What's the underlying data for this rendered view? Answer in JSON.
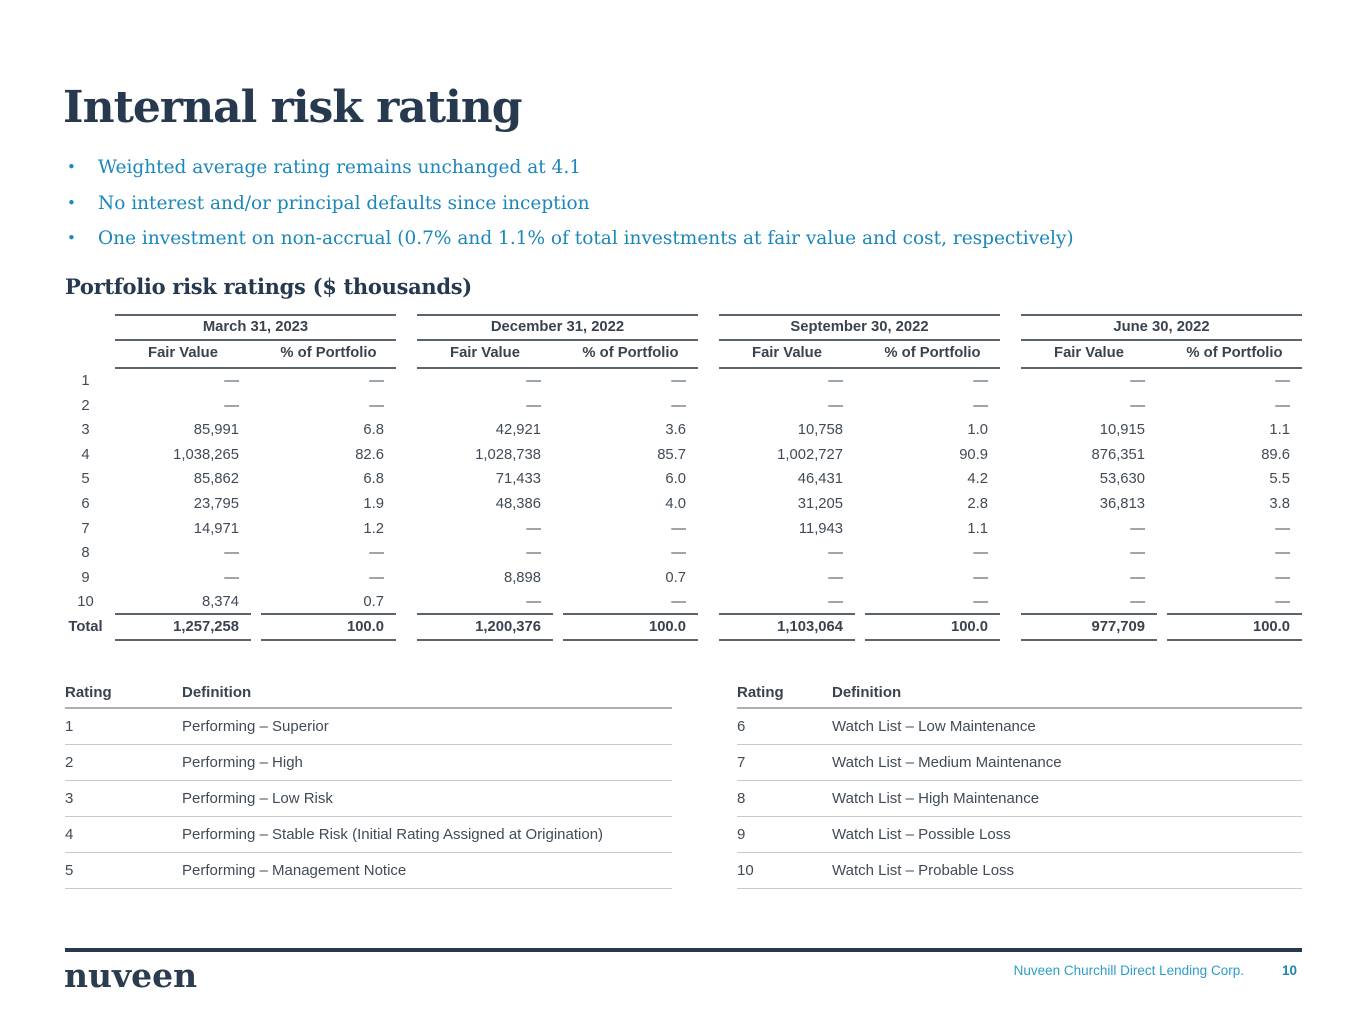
{
  "page": {
    "title": "Internal risk rating",
    "bullets": [
      "Weighted average rating remains unchanged at 4.1",
      "No interest and/or principal defaults since inception",
      "One investment on non-accrual (0.7% and 1.1% of total investments at fair value and cost, respectively)"
    ],
    "section_heading": "Portfolio risk ratings ($ thousands)"
  },
  "risk_table": {
    "column_groups": [
      "March 31, 2023",
      "December 31, 2022",
      "September 30, 2022",
      "June 30, 2022"
    ],
    "sub_headers": [
      "Fair Value",
      "% of Portfolio"
    ],
    "rows": [
      {
        "label": "1",
        "values": [
          "—",
          "—",
          "—",
          "—",
          "—",
          "—",
          "—",
          "—"
        ]
      },
      {
        "label": "2",
        "values": [
          "—",
          "—",
          "—",
          "—",
          "—",
          "—",
          "—",
          "—"
        ]
      },
      {
        "label": "3",
        "values": [
          "85,991",
          "6.8",
          "42,921",
          "3.6",
          "10,758",
          "1.0",
          "10,915",
          "1.1"
        ]
      },
      {
        "label": "4",
        "values": [
          "1,038,265",
          "82.6",
          "1,028,738",
          "85.7",
          "1,002,727",
          "90.9",
          "876,351",
          "89.6"
        ]
      },
      {
        "label": "5",
        "values": [
          "85,862",
          "6.8",
          "71,433",
          "6.0",
          "46,431",
          "4.2",
          "53,630",
          "5.5"
        ]
      },
      {
        "label": "6",
        "values": [
          "23,795",
          "1.9",
          "48,386",
          "4.0",
          "31,205",
          "2.8",
          "36,813",
          "3.8"
        ]
      },
      {
        "label": "7",
        "values": [
          "14,971",
          "1.2",
          "—",
          "—",
          "11,943",
          "1.1",
          "—",
          "—"
        ]
      },
      {
        "label": "8",
        "values": [
          "—",
          "—",
          "—",
          "—",
          "—",
          "—",
          "—",
          "—"
        ]
      },
      {
        "label": "9",
        "values": [
          "—",
          "—",
          "8,898",
          "0.7",
          "—",
          "—",
          "—",
          "—"
        ]
      },
      {
        "label": "10",
        "values": [
          "8,374",
          "0.7",
          "—",
          "—",
          "—",
          "—",
          "—",
          "—"
        ]
      }
    ],
    "total_row": {
      "label": "Total",
      "values": [
        "1,257,258",
        "100.0",
        "1,200,376",
        "100.0",
        "1,103,064",
        "100.0",
        "977,709",
        "100.0"
      ]
    }
  },
  "definitions": {
    "headers": [
      "Rating",
      "Definition"
    ],
    "left_rows": [
      {
        "rating": "1",
        "definition": "Performing – Superior"
      },
      {
        "rating": "2",
        "definition": "Performing – High"
      },
      {
        "rating": "3",
        "definition": "Performing – Low Risk"
      },
      {
        "rating": "4",
        "definition": "Performing – Stable Risk (Initial Rating Assigned at Origination)"
      },
      {
        "rating": "5",
        "definition": "Performing – Management Notice"
      }
    ],
    "right_rows": [
      {
        "rating": "6",
        "definition": "Watch List – Low Maintenance"
      },
      {
        "rating": "7",
        "definition": "Watch List – Medium Maintenance"
      },
      {
        "rating": "8",
        "definition": "Watch List – High Maintenance"
      },
      {
        "rating": "9",
        "definition": "Watch List – Possible Loss"
      },
      {
        "rating": "10",
        "definition": "Watch List – Probable Loss"
      }
    ]
  },
  "footer": {
    "logo_text": "nuveen",
    "company": "Nuveen Churchill Direct Lending Corp.",
    "page_number": "10"
  },
  "colors": {
    "navy": "#26394f",
    "bullet_teal": "#1b87ba",
    "footer_company_blue": "#2e9dca",
    "footer_page_blue": "#1b84b6",
    "table_text": "#414b57",
    "rule_dark": "#59646f",
    "rule_light": "#c6cbd0"
  }
}
